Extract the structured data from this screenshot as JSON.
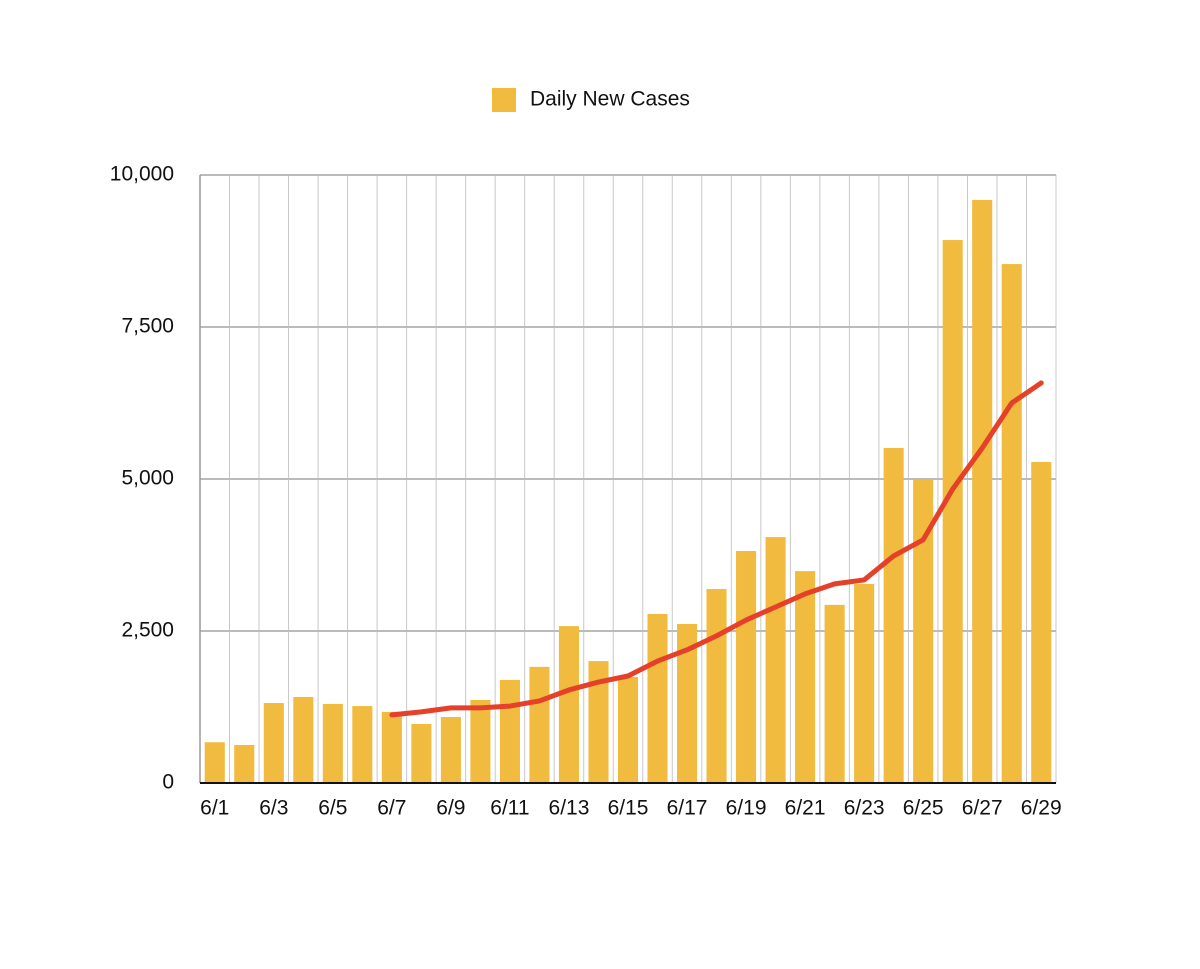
{
  "chart_data": {
    "type": "bar",
    "categories": [
      "6/1",
      null,
      "6/3",
      null,
      "6/5",
      null,
      "6/7",
      null,
      "6/9",
      null,
      "6/11",
      null,
      "6/13",
      null,
      "6/15",
      null,
      "6/17",
      null,
      "6/19",
      null,
      "6/21",
      null,
      "6/23",
      null,
      "6/25",
      null,
      "6/27",
      null,
      "6/29"
    ],
    "series": [
      {
        "name": "Daily New Cases",
        "color": "#f0bb3e",
        "values": [
          670,
          625,
          1315,
          1415,
          1300,
          1265,
          1170,
          970,
          1085,
          1365,
          1695,
          1910,
          2580,
          2005,
          1745,
          2780,
          2615,
          3190,
          3815,
          4045,
          3485,
          2930,
          3275,
          5510,
          4985,
          8930,
          9590,
          8535,
          5280
        ]
      },
      {
        "type": "line",
        "color": "#e5402a",
        "values": [
          null,
          null,
          null,
          null,
          null,
          null,
          1120,
          1170,
          1235,
          1235,
          1265,
          1350,
          1530,
          1660,
          1760,
          2005,
          2190,
          2420,
          2680,
          2895,
          3110,
          3275,
          3340,
          3735,
          4000,
          4835,
          5510,
          6250,
          6580
        ]
      }
    ],
    "ylim": [
      0,
      10000
    ],
    "yticks": [
      0,
      {
        "value": 2500,
        "label": "2,500"
      },
      {
        "value": 5000,
        "label": "5,000"
      },
      {
        "value": 7500,
        "label": "7,500"
      },
      {
        "value": 10000,
        "label": "10,000"
      }
    ],
    "grid": true,
    "legend": "top"
  }
}
